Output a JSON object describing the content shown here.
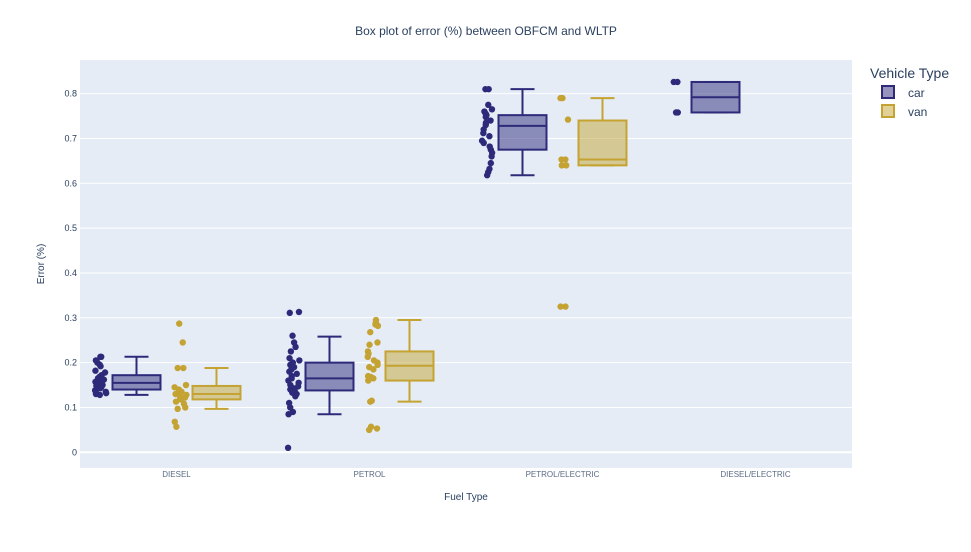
{
  "chart_data": {
    "type": "box",
    "title": "Box plot of error (%) between OBFCM and WLTP",
    "xlabel": "Fuel Type",
    "ylabel": "Error (%)",
    "categories": [
      "DIESEL",
      "PETROL",
      "PETROL/ELECTRIC",
      "DIESEL/ELECTRIC"
    ],
    "ylim": [
      -0.035,
      0.875
    ],
    "yticks": [
      0,
      0.1,
      0.2,
      0.3,
      0.4,
      0.5,
      0.6,
      0.7,
      0.8
    ],
    "ytick_labels": [
      "0",
      "0.1",
      "0.2",
      "0.3",
      "0.4",
      "0.5",
      "0.6",
      "0.7",
      "0.8"
    ],
    "grid": true,
    "legend": {
      "title": "Vehicle Type",
      "position": "top-right"
    },
    "series": [
      {
        "name": "car",
        "color": "#2e2a7a",
        "fill": "rgba(46,42,122,0.5)",
        "boxes": [
          {
            "category": "DIESEL",
            "min": 0.128,
            "q1": 0.14,
            "median": 0.155,
            "q3": 0.172,
            "max": 0.213,
            "points": [
              0.213,
              0.213,
              0.205,
              0.2,
              0.195,
              0.192,
              0.182,
              0.178,
              0.172,
              0.168,
              0.165,
              0.162,
              0.16,
              0.157,
              0.155,
              0.153,
              0.15,
              0.148,
              0.145,
              0.143,
              0.14,
              0.138,
              0.135,
              0.132,
              0.13,
              0.128
            ]
          },
          {
            "category": "PETROL",
            "min": 0.085,
            "q1": 0.138,
            "median": 0.165,
            "q3": 0.2,
            "max": 0.258,
            "points": [
              0.313,
              0.311,
              0.26,
              0.245,
              0.235,
              0.225,
              0.21,
              0.205,
              0.2,
              0.195,
              0.19,
              0.185,
              0.18,
              0.175,
              0.17,
              0.165,
              0.16,
              0.155,
              0.15,
              0.147,
              0.143,
              0.14,
              0.137,
              0.133,
              0.13,
              0.125,
              0.11,
              0.1,
              0.09,
              0.085,
              0.01
            ]
          },
          {
            "category": "PETROL/ELECTRIC",
            "min": 0.618,
            "q1": 0.675,
            "median": 0.728,
            "q3": 0.752,
            "max": 0.81,
            "points": [
              0.81,
              0.81,
              0.775,
              0.765,
              0.76,
              0.755,
              0.752,
              0.748,
              0.74,
              0.735,
              0.73,
              0.72,
              0.712,
              0.705,
              0.695,
              0.69,
              0.682,
              0.675,
              0.668,
              0.66,
              0.645,
              0.632,
              0.625,
              0.618
            ]
          },
          {
            "category": "DIESEL/ELECTRIC",
            "min": 0.758,
            "q1": 0.758,
            "median": 0.792,
            "q3": 0.826,
            "max": 0.826,
            "points": [
              0.826,
              0.826,
              0.758,
              0.758
            ]
          }
        ]
      },
      {
        "name": "van",
        "color": "#c4a332",
        "fill": "rgba(196,163,50,0.5)",
        "boxes": [
          {
            "category": "DIESEL",
            "min": 0.097,
            "q1": 0.118,
            "median": 0.13,
            "q3": 0.148,
            "max": 0.188,
            "points": [
              0.287,
              0.245,
              0.188,
              0.188,
              0.15,
              0.145,
              0.14,
              0.135,
              0.132,
              0.13,
              0.128,
              0.125,
              0.122,
              0.12,
              0.118,
              0.113,
              0.108,
              0.1,
              0.097,
              0.068,
              0.057
            ]
          },
          {
            "category": "PETROL",
            "min": 0.113,
            "q1": 0.16,
            "median": 0.193,
            "q3": 0.225,
            "max": 0.295,
            "points": [
              0.295,
              0.29,
              0.285,
              0.282,
              0.268,
              0.245,
              0.24,
              0.225,
              0.22,
              0.213,
              0.205,
              0.2,
              0.195,
              0.19,
              0.185,
              0.17,
              0.168,
              0.165,
              0.16,
              0.115,
              0.113,
              0.057,
              0.053,
              0.05
            ]
          },
          {
            "category": "PETROL/ELECTRIC",
            "min": 0.64,
            "q1": 0.64,
            "median": 0.653,
            "q3": 0.74,
            "max": 0.79,
            "points": [
              0.79,
              0.79,
              0.742,
              0.653,
              0.653,
              0.64,
              0.64,
              0.325,
              0.325
            ]
          }
        ]
      }
    ]
  }
}
